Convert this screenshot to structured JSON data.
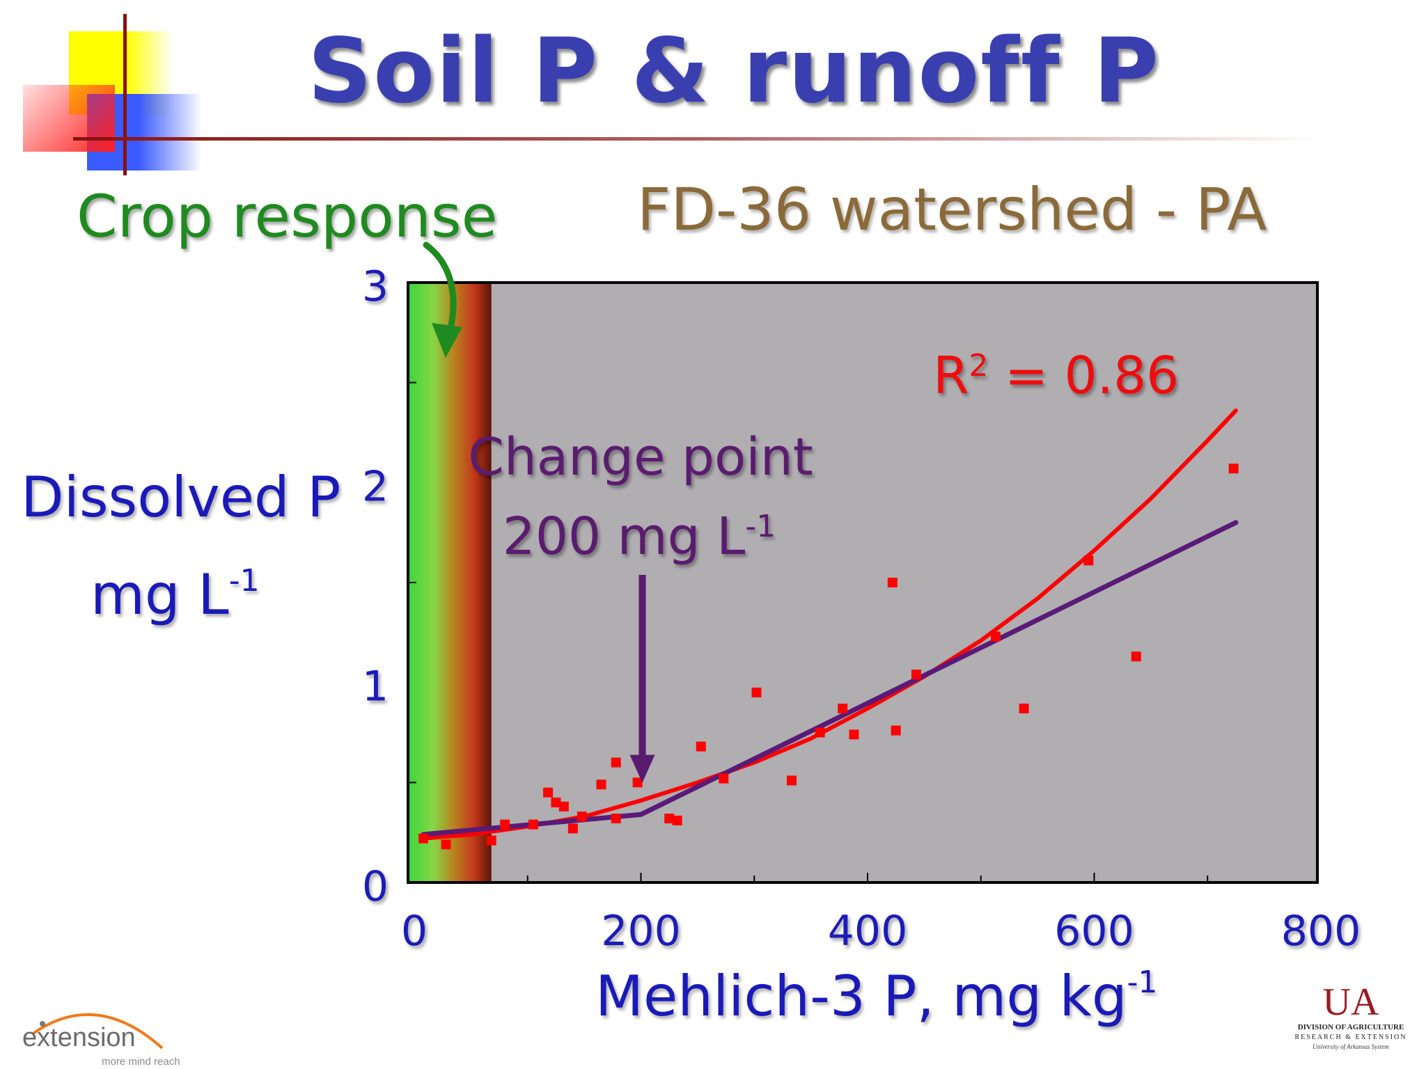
{
  "slide": {
    "title": "Soil P & runoff P",
    "crop_response": "Crop response",
    "subtitle": "FD-36 watershed - PA",
    "change_point_line1": "Change point",
    "change_point_line2_base": "200 mg L",
    "change_point_line2_sup": "-1",
    "r2_base": "R",
    "r2_sup": "2",
    "r2_value": " = 0.86",
    "ylabel_line1": "Dissolved P",
    "ylabel_line2_base": "mg L",
    "ylabel_line2_sup": "-1",
    "xlabel_base": "Mehlich-3 P, mg kg",
    "xlabel_sup": "-1"
  },
  "logos": {
    "extension_word": "extension",
    "extension_tagline": "more mind reach",
    "ua_mark": "UA",
    "ua_line1": "DIVISION OF AGRICULTURE",
    "ua_line2": "RESEARCH & EXTENSION",
    "ua_line3": "University of Arkansas System"
  },
  "colors": {
    "title": "#3a3fb0",
    "crop_response": "#1f8a1f",
    "subtitle": "#8b6a3a",
    "axis_labels": "#1a1ab8",
    "plot_background": "#b0aeb1",
    "points": "#ff0000",
    "curve": "#ff0000",
    "segmented_fit": "#5a1a78",
    "annotation": "#5a1a6e"
  },
  "chart_data": {
    "type": "scatter",
    "xlabel": "Mehlich-3 P, mg kg-1",
    "ylabel": "Dissolved P mg L-1",
    "xlim": [
      0,
      800
    ],
    "ylim": [
      0,
      3
    ],
    "x_ticks": [
      "0",
      "200",
      "400",
      "600",
      "800"
    ],
    "y_ticks": [
      "0",
      "1",
      "2",
      "3"
    ],
    "crop_response_band_x": [
      0,
      68
    ],
    "series": [
      {
        "type": "scatter",
        "points": [
          [
            8,
            0.22
          ],
          [
            28,
            0.19
          ],
          [
            68,
            0.21
          ],
          [
            80,
            0.29
          ],
          [
            105,
            0.29
          ],
          [
            118,
            0.45
          ],
          [
            125,
            0.4
          ],
          [
            132,
            0.38
          ],
          [
            140,
            0.27
          ],
          [
            148,
            0.33
          ],
          [
            165,
            0.49
          ],
          [
            178,
            0.6
          ],
          [
            178,
            0.32
          ],
          [
            197,
            0.5
          ],
          [
            225,
            0.32
          ],
          [
            232,
            0.31
          ],
          [
            253,
            0.68
          ],
          [
            273,
            0.52
          ],
          [
            302,
            0.95
          ],
          [
            333,
            0.51
          ],
          [
            358,
            0.75
          ],
          [
            378,
            0.87
          ],
          [
            388,
            0.74
          ],
          [
            422,
            1.5
          ],
          [
            425,
            0.76
          ],
          [
            443,
            1.04
          ],
          [
            513,
            1.23
          ],
          [
            538,
            0.87
          ],
          [
            595,
            1.61
          ],
          [
            637,
            1.13
          ],
          [
            723,
            2.07
          ]
        ]
      },
      {
        "type": "line",
        "kind": "exponential fit",
        "points": [
          [
            8,
            0.22
          ],
          [
            50,
            0.24
          ],
          [
            100,
            0.28
          ],
          [
            150,
            0.33
          ],
          [
            200,
            0.41
          ],
          [
            250,
            0.5
          ],
          [
            300,
            0.6
          ],
          [
            350,
            0.72
          ],
          [
            400,
            0.87
          ],
          [
            450,
            1.03
          ],
          [
            500,
            1.21
          ],
          [
            550,
            1.42
          ],
          [
            600,
            1.66
          ],
          [
            650,
            1.92
          ],
          [
            700,
            2.21
          ],
          [
            725,
            2.36
          ]
        ]
      },
      {
        "type": "line",
        "kind": "change point regression",
        "points": [
          [
            8,
            0.24
          ],
          [
            200,
            0.34
          ],
          [
            725,
            1.8
          ]
        ]
      }
    ],
    "annotations": [
      {
        "text": "R2 = 0.86"
      },
      {
        "text": "Change point 200 mg L-1",
        "arrow_to": [
          200,
          0.52
        ]
      }
    ]
  }
}
